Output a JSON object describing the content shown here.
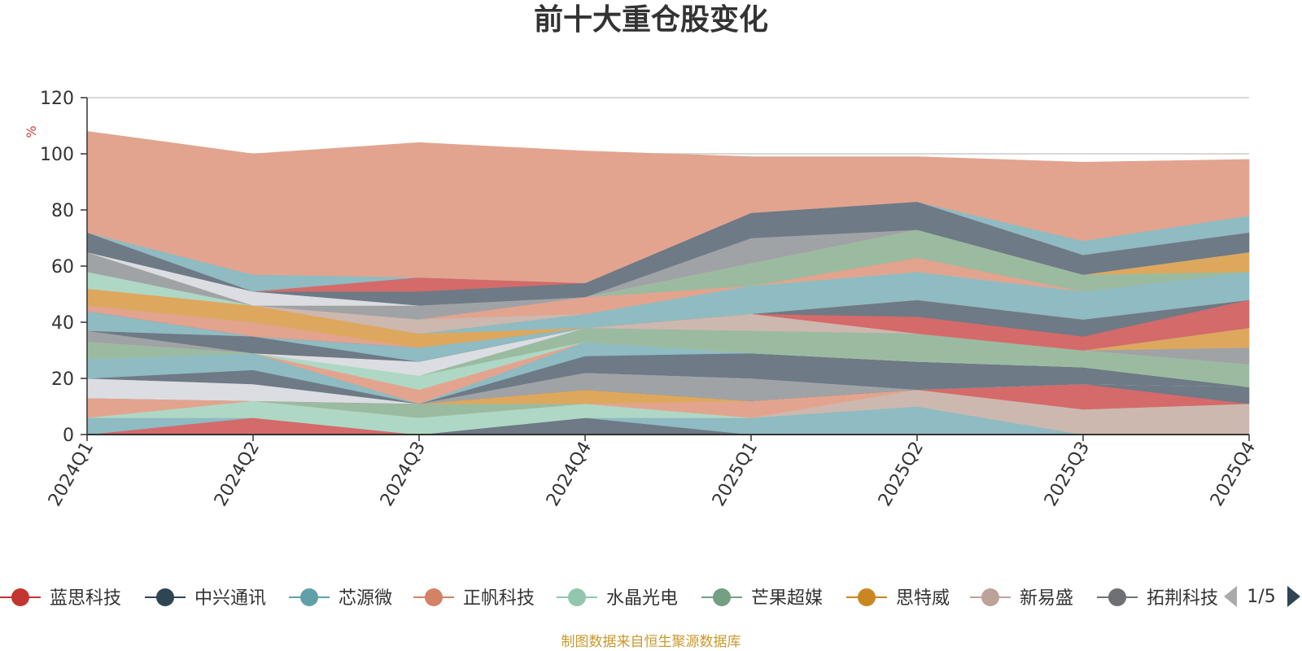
{
  "chart_data": {
    "type": "area",
    "stacked": true,
    "title": "前十大重仓股变化",
    "unit": "%",
    "ylim": [
      0,
      120
    ],
    "yticks": [
      0,
      20,
      40,
      60,
      80,
      100,
      120
    ],
    "categories": [
      "2024Q1",
      "2024Q2",
      "2024Q3",
      "2024Q4",
      "2025Q1",
      "2025Q2",
      "2025Q3",
      "2025Q4"
    ],
    "series": [
      {
        "name": "蓝思科技",
        "color": "#d56a6a",
        "values": [
          0,
          6,
          0,
          0,
          0,
          0,
          0,
          0
        ]
      },
      {
        "name": "拓荆科技",
        "color": "#6e7a85",
        "values": [
          0,
          0,
          0,
          6,
          0,
          0,
          0,
          0
        ]
      },
      {
        "name": "芯源微",
        "color": "#8fbbc2",
        "values": [
          6,
          0,
          0,
          0,
          6,
          10,
          0,
          0
        ]
      },
      {
        "name": "新易盛",
        "color": "#cdb8b0",
        "values": [
          0,
          0,
          0,
          0,
          0,
          6,
          9,
          11
        ]
      },
      {
        "name": "水晶光电",
        "color": "#aed8c5",
        "values": [
          0,
          6,
          6,
          5,
          0,
          0,
          0,
          0
        ]
      },
      {
        "name": "正帆科技",
        "color": "#e2a48e",
        "values": [
          7,
          0,
          0,
          0,
          6,
          0,
          0,
          0
        ]
      },
      {
        "name": "芒果超媒",
        "color": "#9bbba0",
        "values": [
          0,
          0,
          5,
          0,
          0,
          0,
          0,
          0
        ]
      },
      {
        "name": "思特威",
        "color": "#dda85e",
        "values": [
          0,
          0,
          0,
          5,
          0,
          0,
          0,
          0
        ]
      },
      {
        "name": "蓝思科技",
        "color": "#d56a6a",
        "values": [
          0,
          0,
          0,
          0,
          0,
          0,
          9,
          0
        ]
      },
      {
        "name": "中兴通讯",
        "color": "#6e7a85",
        "values": [
          0,
          0,
          0,
          0,
          0,
          0,
          0,
          6
        ]
      },
      {
        "name": "拓荆科技",
        "color": "#a0a3a6",
        "values": [
          0,
          0,
          0,
          6,
          8,
          0,
          0,
          0
        ]
      },
      {
        "name": "新易盛",
        "color": "#dcdde3",
        "values": [
          7,
          6,
          0,
          0,
          0,
          0,
          0,
          0
        ]
      },
      {
        "name": "中兴通讯",
        "color": "#6e7a85",
        "values": [
          0,
          5,
          0,
          6,
          9,
          10,
          6,
          0
        ]
      },
      {
        "name": "芯源微",
        "color": "#8fbbc2",
        "values": [
          7,
          6,
          0,
          5,
          0,
          0,
          0,
          0
        ]
      },
      {
        "name": "正帆科技",
        "color": "#e2a48e",
        "values": [
          0,
          0,
          5,
          0,
          0,
          0,
          0,
          0
        ]
      },
      {
        "name": "水晶光电",
        "color": "#aed8c5",
        "values": [
          0,
          0,
          5,
          0,
          0,
          0,
          0,
          0
        ]
      },
      {
        "name": "芒果超媒",
        "color": "#9bbba0",
        "values": [
          6,
          0,
          0,
          5,
          8,
          10,
          6,
          8
        ]
      },
      {
        "name": "新易盛",
        "color": "#dcdde3",
        "values": [
          0,
          0,
          5,
          0,
          0,
          0,
          0,
          0
        ]
      },
      {
        "name": "拓荆科技",
        "color": "#a0a3a6",
        "values": [
          4,
          0,
          0,
          0,
          0,
          0,
          0,
          6
        ]
      },
      {
        "name": "思特威",
        "color": "#dda85e",
        "values": [
          0,
          0,
          0,
          0,
          0,
          0,
          0,
          7
        ]
      },
      {
        "name": "中兴通讯",
        "color": "#6e7a85",
        "values": [
          0,
          6,
          0,
          0,
          0,
          0,
          0,
          0
        ]
      },
      {
        "name": "芯源微",
        "color": "#8fbbc2",
        "values": [
          7,
          0,
          5,
          0,
          0,
          0,
          0,
          0
        ]
      },
      {
        "name": "新易盛",
        "color": "#cdb8b0",
        "values": [
          0,
          0,
          0,
          0,
          6,
          0,
          0,
          0
        ]
      },
      {
        "name": "蓝思科技",
        "color": "#d56a6a",
        "values": [
          0,
          0,
          0,
          0,
          0,
          6,
          5,
          10
        ]
      },
      {
        "name": "中兴通讯",
        "color": "#6e7a85",
        "values": [
          0,
          0,
          0,
          0,
          0,
          6,
          6,
          0
        ]
      },
      {
        "name": "正帆科技",
        "color": "#e2a48e",
        "values": [
          2,
          5,
          0,
          0,
          0,
          0,
          0,
          0
        ]
      },
      {
        "name": "思特威",
        "color": "#dda85e",
        "values": [
          0,
          0,
          5,
          0,
          0,
          0,
          0,
          0
        ]
      },
      {
        "name": "芯源微",
        "color": "#8fbbc2",
        "values": [
          0,
          0,
          0,
          5,
          10,
          10,
          10,
          10
        ]
      },
      {
        "name": "思特威",
        "color": "#dda85e",
        "values": [
          6,
          6,
          0,
          0,
          0,
          0,
          0,
          0
        ]
      },
      {
        "name": "新易盛",
        "color": "#cdb8b0",
        "values": [
          0,
          0,
          5,
          0,
          0,
          0,
          0,
          0
        ]
      },
      {
        "name": "水晶光电",
        "color": "#aed8c5",
        "values": [
          6,
          0,
          0,
          0,
          0,
          0,
          0,
          0
        ]
      },
      {
        "name": "正帆科技",
        "color": "#e2a48e",
        "values": [
          0,
          0,
          0,
          6,
          0,
          5,
          0,
          0
        ]
      },
      {
        "name": "拓荆科技",
        "color": "#a0a3a6",
        "values": [
          7,
          0,
          5,
          0,
          0,
          0,
          0,
          0
        ]
      },
      {
        "name": "芒果超媒",
        "color": "#9bbba0",
        "values": [
          0,
          0,
          0,
          0,
          8,
          10,
          6,
          0
        ]
      },
      {
        "name": "思特威",
        "color": "#dda85e",
        "values": [
          0,
          0,
          0,
          0,
          0,
          0,
          0,
          7
        ]
      },
      {
        "name": "新易盛",
        "color": "#dcdde3",
        "values": [
          0,
          5,
          0,
          0,
          0,
          0,
          0,
          0
        ]
      },
      {
        "name": "拓荆科技",
        "color": "#a0a3a6",
        "values": [
          0,
          0,
          0,
          0,
          9,
          0,
          0,
          0
        ]
      },
      {
        "name": "中兴通讯",
        "color": "#6e7a85",
        "values": [
          7,
          0,
          5,
          5,
          9,
          10,
          7,
          7
        ]
      },
      {
        "name": "蓝思科技",
        "color": "#d56a6a",
        "values": [
          0,
          0,
          5,
          0,
          0,
          0,
          0,
          0
        ]
      },
      {
        "name": "芯源微",
        "color": "#8fbbc2",
        "values": [
          0,
          6,
          0,
          0,
          0,
          0,
          5,
          6
        ]
      },
      {
        "name": "正帆科技",
        "color": "#e2a48e",
        "values": [
          36,
          43,
          48,
          47,
          20,
          16,
          28,
          20
        ]
      }
    ]
  },
  "legend": {
    "items": [
      {
        "label": "蓝思科技",
        "color": "#c23531"
      },
      {
        "label": "中兴通讯",
        "color": "#2f4554"
      },
      {
        "label": "芯源微",
        "color": "#61a0a8"
      },
      {
        "label": "正帆科技",
        "color": "#d48265"
      },
      {
        "label": "水晶光电",
        "color": "#91c7ae"
      },
      {
        "label": "芒果超媒",
        "color": "#749f83"
      },
      {
        "label": "思特威",
        "color": "#ca8622"
      },
      {
        "label": "新易盛",
        "color": "#bda29a"
      },
      {
        "label": "拓荆科技",
        "color": "#6e7074"
      }
    ],
    "page": "1/5",
    "prev_color": "#aaaaaa",
    "next_color": "#2f4554"
  },
  "footer": "制图数据来自恒生聚源数据库"
}
